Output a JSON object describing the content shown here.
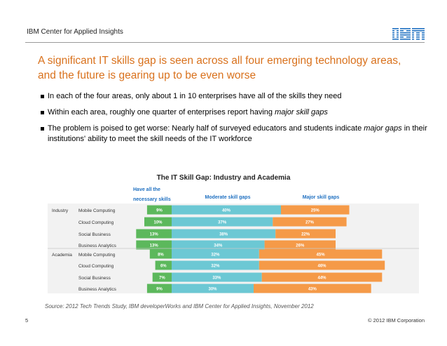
{
  "header": {
    "label": "IBM Center for Applied Insights",
    "logo": "IBM"
  },
  "title": "A significant IT skills gap is seen across all four emerging technology areas, and the future is gearing up to be even worse",
  "bullets": {
    "b1": "In each of the four areas, only about 1 in 10 enterprises have all of the skills they need",
    "b2_pre": "Within each area, roughly one quarter of enterprises report having ",
    "b2_em": "major skill gaps",
    "b3_pre": "The problem is poised to get worse: Nearly half of surveyed educators and students indicate ",
    "b3_em": "major gaps",
    "b3_post": " in their institutions' ability to meet the skill needs of the IT workforce"
  },
  "chart_data": {
    "type": "bar",
    "stacked": true,
    "orientation": "horizontal",
    "title": "The IT Skill Gap: Industry and Academia",
    "groups": [
      "Industry",
      "Academia"
    ],
    "categories": [
      "Mobile Computing",
      "Cloud Computing",
      "Social Business",
      "Business Analytics",
      "Mobile Computing",
      "Cloud Computing",
      "Social Business",
      "Business Analytics"
    ],
    "category_group": [
      "Industry",
      "Industry",
      "Industry",
      "Industry",
      "Academia",
      "Academia",
      "Academia",
      "Academia"
    ],
    "series": [
      {
        "name": "Have all the necessary skills",
        "color": "#5cb85c",
        "values": [
          9,
          10,
          13,
          13,
          8,
          6,
          7,
          9
        ]
      },
      {
        "name": "Moderate skill gaps",
        "color": "#6cc8d4",
        "values": [
          40,
          37,
          38,
          34,
          32,
          32,
          33,
          30
        ]
      },
      {
        "name": "Major skill gaps",
        "color": "#f59a48",
        "values": [
          25,
          27,
          22,
          26,
          45,
          46,
          44,
          43
        ]
      }
    ],
    "value_suffix": "%",
    "source": "Source: 2012 Tech Trends Study, IBM developerWorks and IBM Center for Applied Insights, November 2012"
  },
  "footer": {
    "page": "5",
    "copyright": "© 2012 IBM Corporation"
  }
}
